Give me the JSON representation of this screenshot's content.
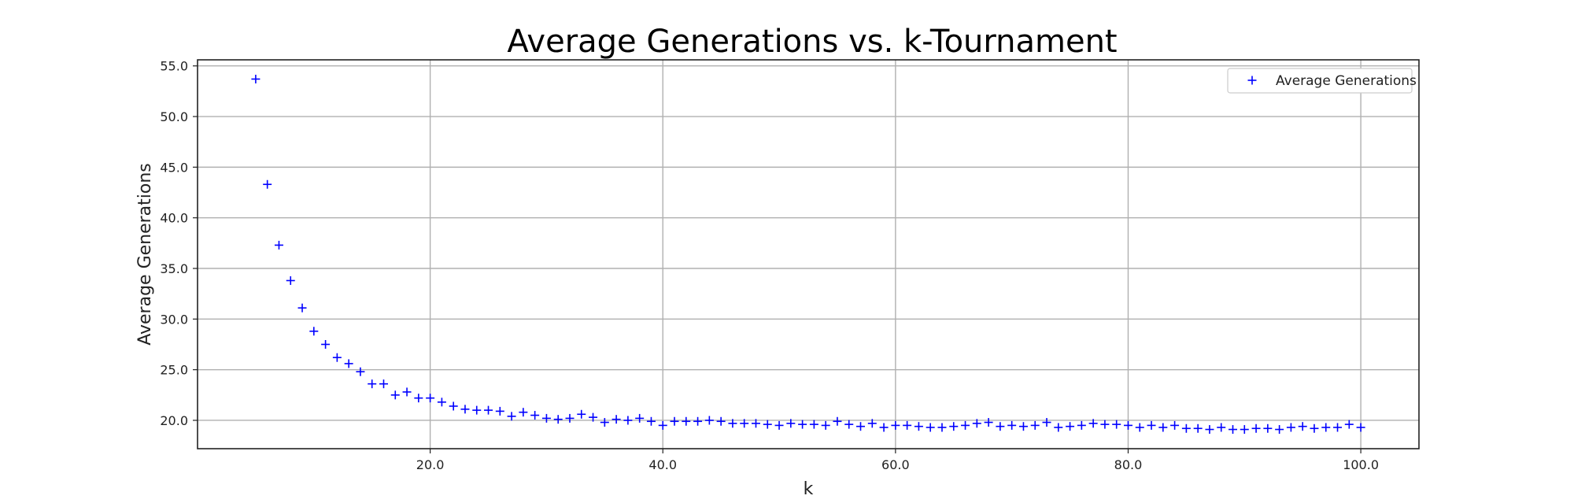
{
  "chart_data": {
    "type": "scatter",
    "title": "Average Generations vs. k-Tournament",
    "xlabel": "k",
    "ylabel": "Average Generations",
    "xlim": [
      0,
      105
    ],
    "ylim": [
      17.2,
      55.6
    ],
    "xticks": [
      20,
      40,
      60,
      80,
      100
    ],
    "xtick_labels": [
      "20.0",
      "40.0",
      "60.0",
      "80.0",
      "100.0"
    ],
    "yticks": [
      20,
      25,
      30,
      35,
      40,
      45,
      50,
      55
    ],
    "ytick_labels": [
      "20.0",
      "25.0",
      "30.0",
      "35.0",
      "40.0",
      "45.0",
      "50.0",
      "55.0"
    ],
    "grid": true,
    "legend_position": "top-right",
    "marker": "+",
    "color": "#0000ff",
    "series": [
      {
        "name": "Average Generations",
        "x": [
          5,
          6,
          7,
          8,
          9,
          10,
          11,
          12,
          13,
          14,
          15,
          16,
          17,
          18,
          19,
          20,
          21,
          22,
          23,
          24,
          25,
          26,
          27,
          28,
          29,
          30,
          31,
          32,
          33,
          34,
          35,
          36,
          37,
          38,
          39,
          40,
          41,
          42,
          43,
          44,
          45,
          46,
          47,
          48,
          49,
          50,
          51,
          52,
          53,
          54,
          55,
          56,
          57,
          58,
          59,
          60,
          61,
          62,
          63,
          64,
          65,
          66,
          67,
          68,
          69,
          70,
          71,
          72,
          73,
          74,
          75,
          76,
          77,
          78,
          79,
          80,
          81,
          82,
          83,
          84,
          85,
          86,
          87,
          88,
          89,
          90,
          91,
          92,
          93,
          94,
          95,
          96,
          97,
          98,
          99,
          100
        ],
        "y": [
          53.7,
          43.3,
          37.3,
          33.8,
          31.1,
          28.8,
          27.5,
          26.2,
          25.6,
          24.8,
          23.6,
          23.6,
          22.5,
          22.8,
          22.2,
          22.2,
          21.8,
          21.4,
          21.1,
          21.0,
          21.0,
          20.9,
          20.4,
          20.8,
          20.5,
          20.2,
          20.1,
          20.2,
          20.6,
          20.3,
          19.8,
          20.1,
          20.0,
          20.2,
          19.9,
          19.5,
          19.9,
          19.9,
          19.9,
          20.0,
          19.9,
          19.7,
          19.7,
          19.7,
          19.6,
          19.5,
          19.7,
          19.6,
          19.6,
          19.5,
          19.9,
          19.6,
          19.4,
          19.7,
          19.3,
          19.5,
          19.5,
          19.4,
          19.3,
          19.3,
          19.4,
          19.5,
          19.7,
          19.8,
          19.4,
          19.5,
          19.4,
          19.5,
          19.8,
          19.3,
          19.4,
          19.5,
          19.7,
          19.6,
          19.6,
          19.5,
          19.3,
          19.5,
          19.3,
          19.5,
          19.2,
          19.2,
          19.1,
          19.3,
          19.1,
          19.1,
          19.2,
          19.2,
          19.1,
          19.3,
          19.4,
          19.2,
          19.3,
          19.3,
          19.6,
          19.3
        ]
      }
    ]
  }
}
